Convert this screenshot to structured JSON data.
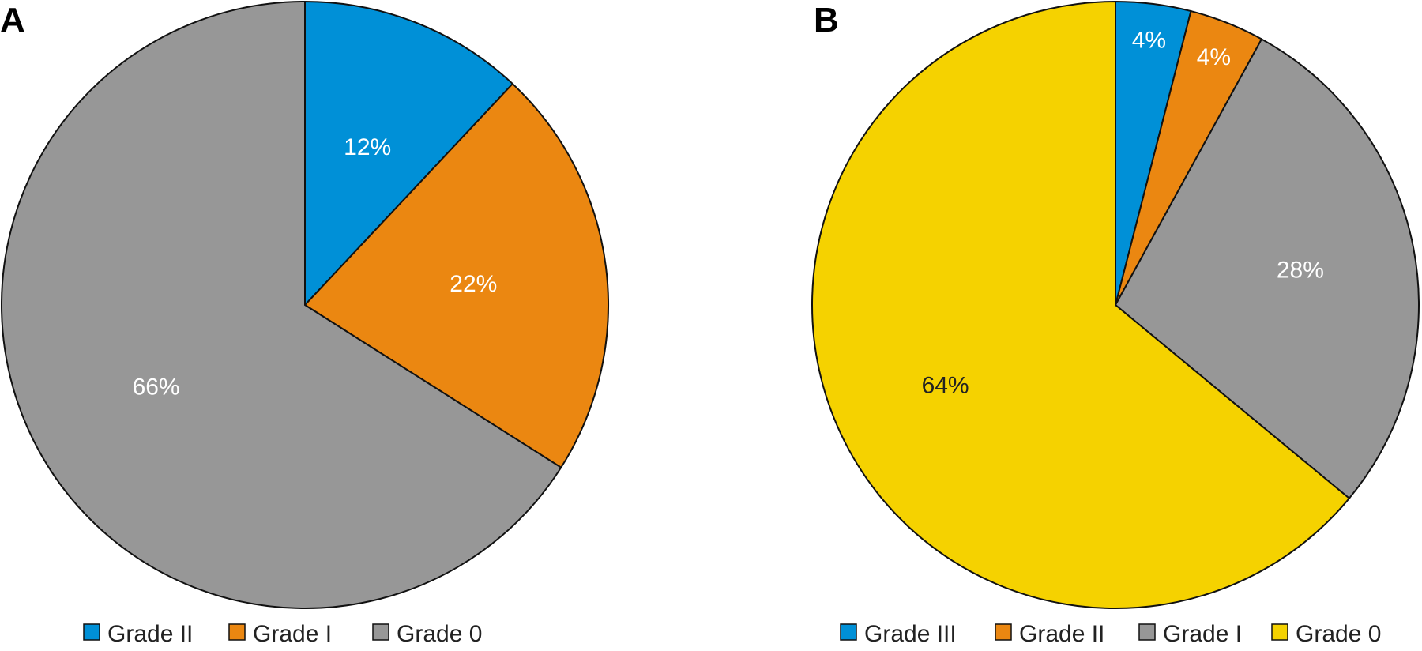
{
  "chart_data": [
    {
      "type": "pie",
      "panel_label": "A",
      "slices": [
        {
          "name": "Grade II",
          "value": 12,
          "label": "12%",
          "color": "#0090d7",
          "label_color": "#ffffff"
        },
        {
          "name": "Grade I",
          "value": 22,
          "label": "22%",
          "color": "#eb8711",
          "label_color": "#ffffff"
        },
        {
          "name": "Grade 0",
          "value": 66,
          "label": "66%",
          "color": "#979797",
          "label_color": "#ffffff"
        }
      ],
      "legend_placement": "bottom"
    },
    {
      "type": "pie",
      "panel_label": "B",
      "slices": [
        {
          "name": "Grade III",
          "value": 4,
          "label": "4%",
          "color": "#0090d7",
          "label_color": "#ffffff"
        },
        {
          "name": "Grade II",
          "value": 4,
          "label": "4%",
          "color": "#eb8711",
          "label_color": "#ffffff"
        },
        {
          "name": "Grade I",
          "value": 28,
          "label": "28%",
          "color": "#979797",
          "label_color": "#ffffff"
        },
        {
          "name": "Grade 0",
          "value": 64,
          "label": "64%",
          "color": "#f5d200",
          "label_color": "#222222"
        }
      ],
      "legend_placement": "bottom"
    }
  ]
}
